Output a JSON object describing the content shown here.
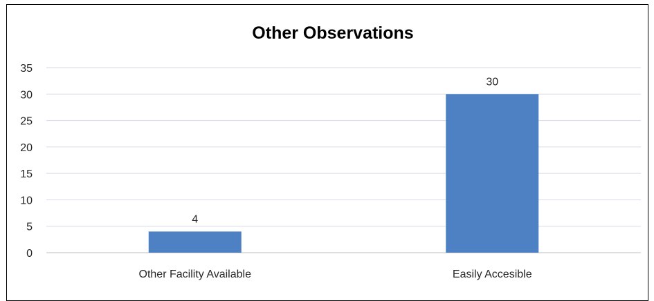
{
  "chart_data": {
    "type": "bar",
    "title": "Other Observations",
    "xlabel": "",
    "ylabel": "",
    "categories": [
      "Other Facility Available",
      "Easily Accesible"
    ],
    "values": [
      4,
      30
    ],
    "data_labels": [
      "4",
      "30"
    ],
    "ylim": [
      0,
      35
    ],
    "yticks": [
      "0",
      "5",
      "10",
      "15",
      "20",
      "25",
      "30",
      "35"
    ],
    "grid": true,
    "legend": "none",
    "colors": {
      "bar": "#4e81c3",
      "grid": "#d6d9e6",
      "axis": "#bfbfbf",
      "text": "#262626"
    }
  }
}
